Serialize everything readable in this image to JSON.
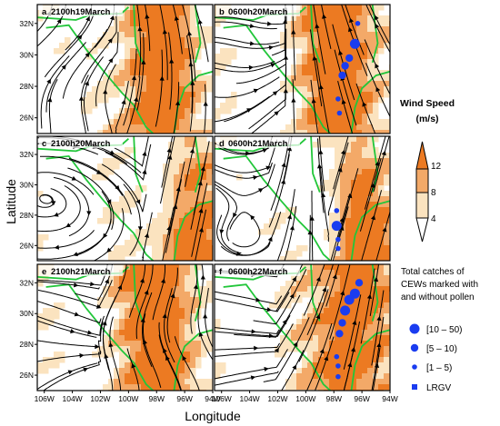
{
  "panels": [
    {
      "letter": "a",
      "time": "2100h19March",
      "dots": []
    },
    {
      "letter": "b",
      "time": "0600h20March",
      "dots": [
        {
          "lon": -96.5,
          "lat": 30.7,
          "size": "large"
        },
        {
          "lon": -97.2,
          "lat": 29.3,
          "size": "medium"
        },
        {
          "lon": -96.9,
          "lat": 29.8,
          "size": "medium"
        },
        {
          "lon": -97.4,
          "lat": 28.7,
          "size": "medium"
        },
        {
          "lon": -97.7,
          "lat": 27.2,
          "size": "small"
        },
        {
          "lon": -97.6,
          "lat": 26.3,
          "size": "small"
        },
        {
          "lon": -96.3,
          "lat": 32.0,
          "size": "small"
        }
      ]
    },
    {
      "letter": "c",
      "time": "2100h20March",
      "dots": []
    },
    {
      "letter": "d",
      "time": "0600h21March",
      "dots": [
        {
          "lon": -97.8,
          "lat": 27.3,
          "size": "large"
        },
        {
          "lon": -97.8,
          "lat": 28.3,
          "size": "small"
        },
        {
          "lon": -97.7,
          "lat": 26.4,
          "size": "small"
        },
        {
          "lon": -97.7,
          "lat": 25.8,
          "size": "small"
        }
      ]
    },
    {
      "letter": "e",
      "time": "2100h21March",
      "dots": []
    },
    {
      "letter": "f",
      "time": "0600h22March",
      "dots": [
        {
          "lon": -96.5,
          "lat": 31.3,
          "size": "large"
        },
        {
          "lon": -96.9,
          "lat": 30.9,
          "size": "large"
        },
        {
          "lon": -96.2,
          "lat": 32.0,
          "size": "medium"
        },
        {
          "lon": -97.2,
          "lat": 30.2,
          "size": "large"
        },
        {
          "lon": -97.4,
          "lat": 29.4,
          "size": "medium"
        },
        {
          "lon": -97.6,
          "lat": 28.7,
          "size": "medium"
        },
        {
          "lon": -97.8,
          "lat": 27.2,
          "size": "small"
        },
        {
          "lon": -97.7,
          "lat": 26.6,
          "size": "small"
        },
        {
          "lon": -97.7,
          "lat": 25.9,
          "size": "small"
        }
      ]
    }
  ],
  "map": {
    "lon_ticks": [
      "106W",
      "104W",
      "102W",
      "100W",
      "98W",
      "96W",
      "94W"
    ],
    "lat_ticks": [
      "26N",
      "28N",
      "30N",
      "32N"
    ],
    "lon_range": [
      -106.5,
      -94
    ],
    "lat_range": [
      25,
      33.2
    ]
  },
  "axes": {
    "xlabel": "Longitude",
    "ylabel": "Latitude"
  },
  "wind_legend": {
    "title_line1": "Wind Speed",
    "title_line2": "(m/s)",
    "levels": [
      "4",
      "8",
      "12"
    ],
    "colors": {
      "low": "#ffffff",
      "light": "#fbe3bf",
      "mid": "#f3a968",
      "high": "#ec7a22"
    }
  },
  "catch_legend": {
    "title_lines": [
      "Total catches of",
      "CEWs marked with",
      "and without pollen"
    ],
    "items": [
      {
        "label": "[10 – 50)",
        "size": "large"
      },
      {
        "label": "[5 – 10)",
        "size": "medium"
      },
      {
        "label": "[1 – 5)",
        "size": "small"
      },
      {
        "label": "LRGV",
        "size": "square"
      }
    ],
    "marker_color": "#1a3cf0"
  },
  "colors": {
    "border": "#22c63a",
    "streamline": "#000000"
  }
}
